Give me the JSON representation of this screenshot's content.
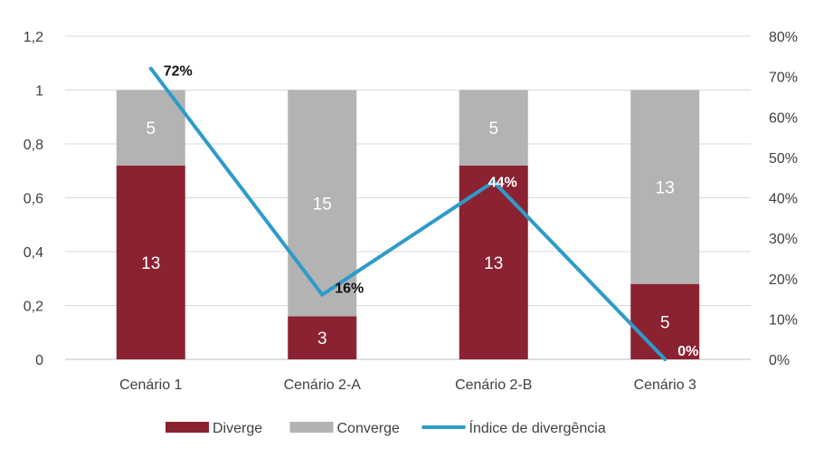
{
  "chart_data": {
    "type": "bar",
    "stacked": true,
    "categories": [
      "Cenário 1",
      "Cenário 2-A",
      "Cenário 2-B",
      "Cenário 3"
    ],
    "series": [
      {
        "name": "Diverge",
        "type": "bar",
        "axis": "left",
        "values": [
          0.72,
          0.16,
          0.72,
          0.28
        ],
        "labels": [
          "13",
          "3",
          "13",
          "5"
        ],
        "color": "#8B2231"
      },
      {
        "name": "Converge",
        "type": "bar",
        "axis": "left",
        "values": [
          0.28,
          0.84,
          0.28,
          0.72
        ],
        "labels": [
          "5",
          "15",
          "5",
          "13"
        ],
        "color": "#B3B3B3"
      },
      {
        "name": "Índice de divergência",
        "type": "line",
        "axis": "right",
        "values": [
          0.72,
          0.16,
          0.44,
          0.0
        ],
        "labels": [
          "72%",
          "16%",
          "44%",
          "0%"
        ],
        "color": "#2E9BC9"
      }
    ],
    "y_left": {
      "range": [
        0,
        1.2
      ],
      "ticks": [
        "0",
        "0,2",
        "0,4",
        "0,6",
        "0,8",
        "1",
        "1,2"
      ]
    },
    "y_right": {
      "range": [
        0,
        0.8
      ],
      "ticks": [
        "0%",
        "10%",
        "20%",
        "30%",
        "40%",
        "50%",
        "60%",
        "70%",
        "80%"
      ]
    },
    "grid": true,
    "legend_position": "bottom"
  }
}
